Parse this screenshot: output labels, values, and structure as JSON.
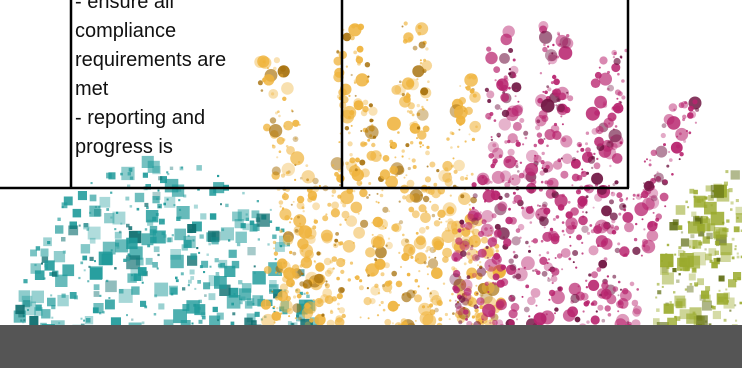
{
  "cell_text": {
    "line_1": "- ensure all",
    "line_2": "compliance",
    "line_3": "requirements are",
    "line_4": "met",
    "line_5": "- reporting and",
    "line_6": "progress is"
  },
  "colors": {
    "teal": "#1e9a9a",
    "gold": "#efb33c",
    "magenta": "#b8246e",
    "olive": "#9aaa2c",
    "floor": "#555555",
    "border": "#000000"
  },
  "icons": {
    "background": "hands-made-of-colored-dots-illustration"
  }
}
